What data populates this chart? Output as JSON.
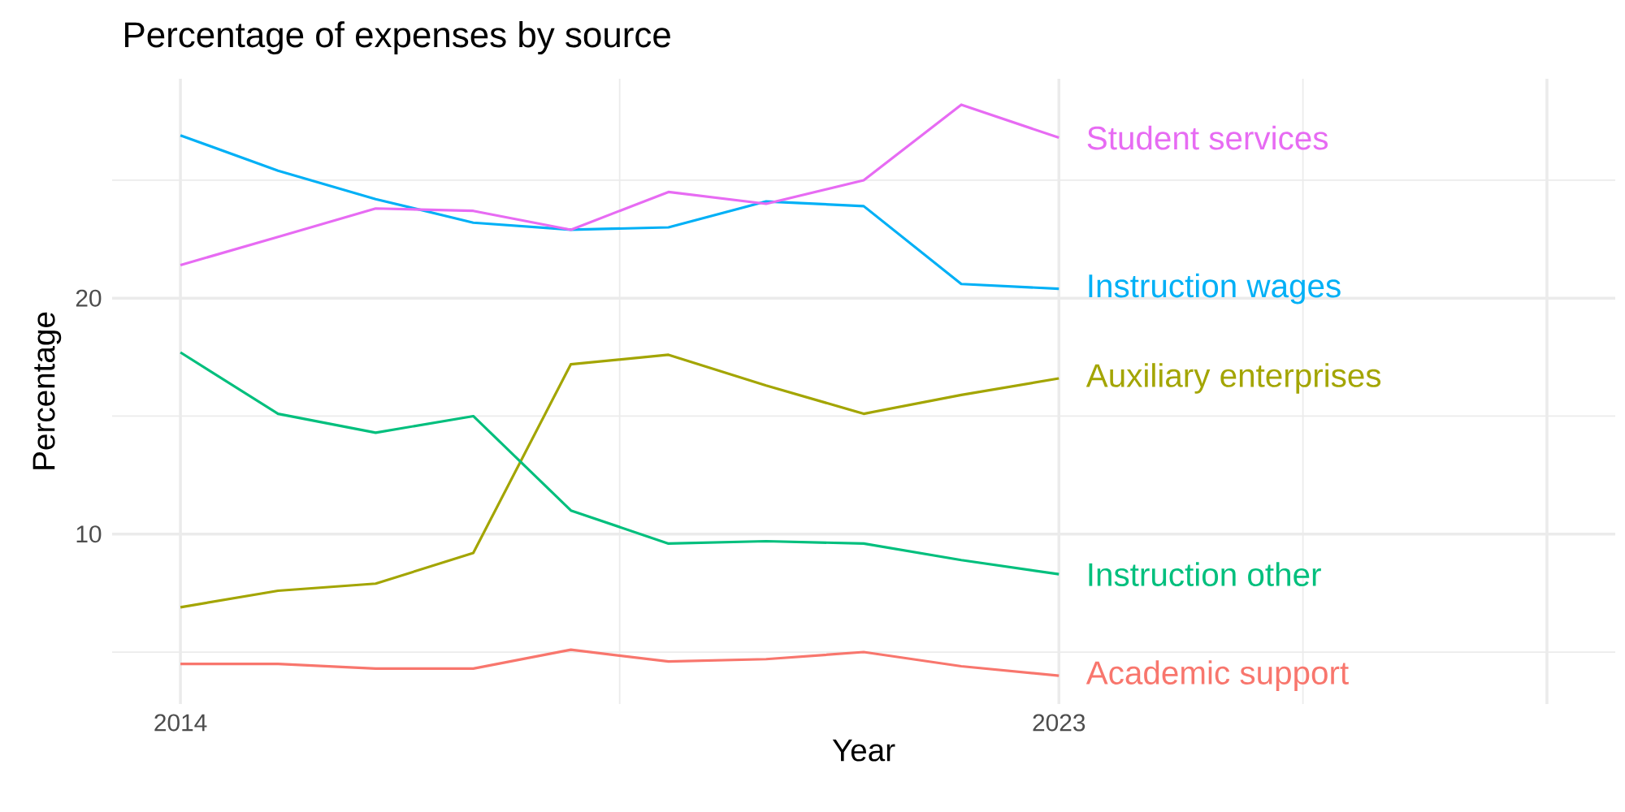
{
  "chart_data": {
    "type": "line",
    "title": "Percentage of expenses by source",
    "xlabel": "Year",
    "ylabel": "Percentage",
    "x": [
      2014,
      2015,
      2016,
      2017,
      2018,
      2019,
      2020,
      2021,
      2022,
      2023
    ],
    "series": [
      {
        "name": "Academic support",
        "color": "#f8766d",
        "values": [
          4.5,
          4.5,
          4.3,
          4.3,
          5.1,
          4.6,
          4.7,
          5.0,
          4.4,
          4.0
        ]
      },
      {
        "name": "Auxiliary enterprises",
        "color": "#a3a500",
        "values": [
          6.9,
          7.6,
          7.9,
          9.2,
          17.2,
          17.6,
          16.3,
          15.1,
          15.9,
          16.6
        ]
      },
      {
        "name": "Instruction other",
        "color": "#00bf7d",
        "values": [
          17.7,
          15.1,
          14.3,
          15.0,
          11.0,
          9.6,
          9.7,
          9.6,
          8.9,
          8.3
        ]
      },
      {
        "name": "Instruction wages",
        "color": "#00b0f6",
        "values": [
          26.9,
          25.4,
          24.2,
          23.2,
          22.9,
          23.0,
          24.1,
          23.9,
          20.6,
          20.4
        ]
      },
      {
        "name": "Student services",
        "color": "#e76bf3",
        "values": [
          21.4,
          22.6,
          23.8,
          23.7,
          22.9,
          24.5,
          24.0,
          25.0,
          28.2,
          26.8
        ]
      }
    ],
    "xlim": [
      2013.3,
      2028.7
    ],
    "ylim": [
      2.8,
      29.3
    ],
    "xticks": [
      2014,
      2023,
      {
        "value": 2028,
        "label": null
      }
    ],
    "yticks": [
      10,
      20
    ],
    "grid": true
  }
}
